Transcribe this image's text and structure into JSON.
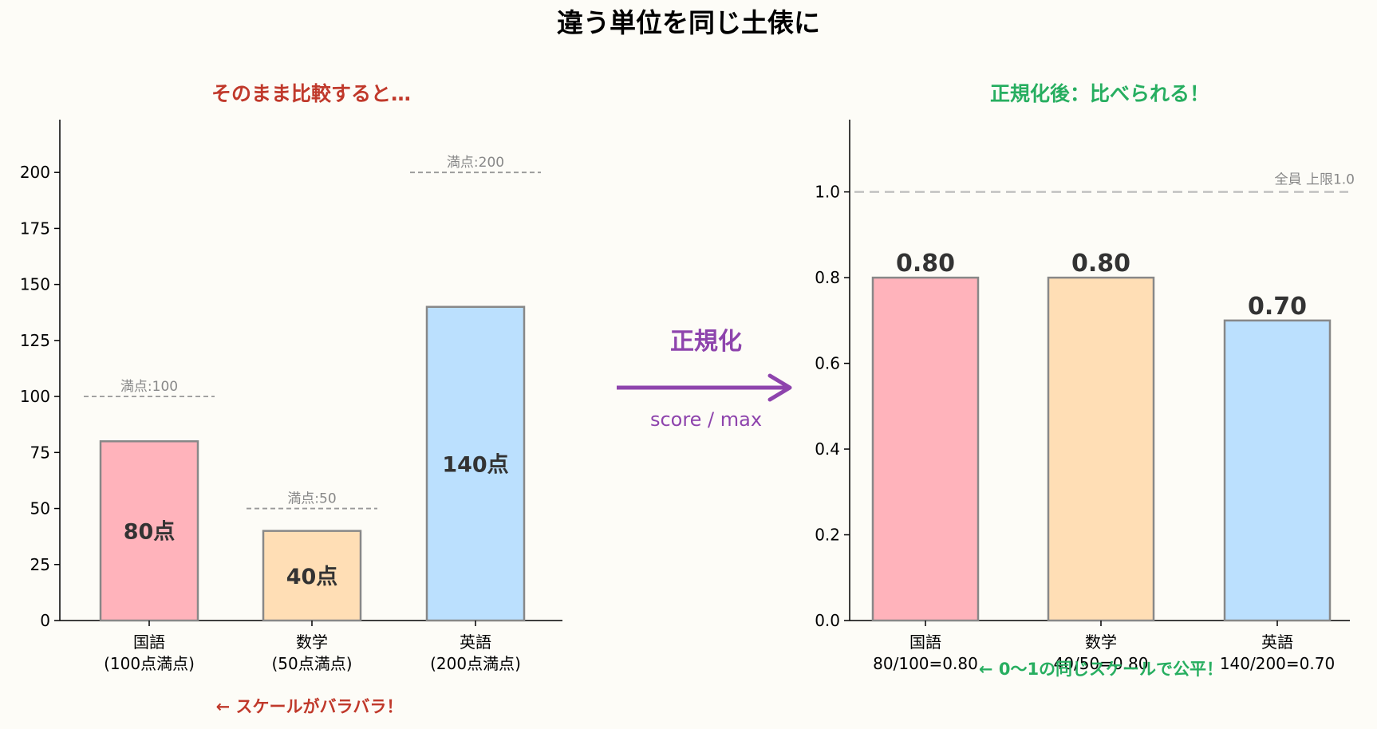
{
  "title": "違う単位を同じ土俵に",
  "colors": {
    "pink": "#ffb3bb",
    "orange": "#ffdeb5",
    "blue": "#bbe0fe",
    "edge": "#888888",
    "red": "#c0392b",
    "green": "#27ae60",
    "purple": "#8e44ad",
    "grey": "#999999",
    "dark": "#333333"
  },
  "middle": {
    "label": "正規化",
    "formula": "score / max"
  },
  "chart_data": [
    {
      "type": "bar",
      "title": "そのまま比較すると…",
      "categories": [
        "国語\n(100点満点)",
        "数学\n(50点満点)",
        "英語\n(200点満点)"
      ],
      "values": [
        80,
        40,
        140
      ],
      "bar_labels": [
        "80点",
        "40点",
        "140点"
      ],
      "max_lines": [
        100,
        50,
        200
      ],
      "max_labels": [
        "満点:100",
        "満点:50",
        "満点:200"
      ],
      "ylim": [
        0,
        220
      ],
      "yticks": [
        0,
        25,
        50,
        75,
        100,
        125,
        150,
        175,
        200
      ],
      "ytick_labels": [
        "0",
        "25",
        "50",
        "75",
        "100",
        "125",
        "150",
        "175",
        "200"
      ],
      "xlabel": "",
      "ylabel": "",
      "annotation": "← スケールがバラバラ！"
    },
    {
      "type": "bar",
      "title": "正規化後：比べられる！",
      "categories": [
        "国語\n80/100=0.80",
        "数学\n40/50=0.80",
        "英語\n140/200=0.70"
      ],
      "values": [
        0.8,
        0.8,
        0.7
      ],
      "bar_labels": [
        "0.80",
        "0.80",
        "0.70"
      ],
      "ref_line": 1.0,
      "ref_label": "全員 上限1.0",
      "ylim": [
        0,
        1.15
      ],
      "yticks": [
        0,
        0.2,
        0.4,
        0.6,
        0.8,
        1.0
      ],
      "ytick_labels": [
        "0.0",
        "0.2",
        "0.4",
        "0.6",
        "0.8",
        "1.0"
      ],
      "xlabel": "",
      "ylabel": "",
      "annotation": "← 0〜1の同じスケールで公平！"
    }
  ]
}
